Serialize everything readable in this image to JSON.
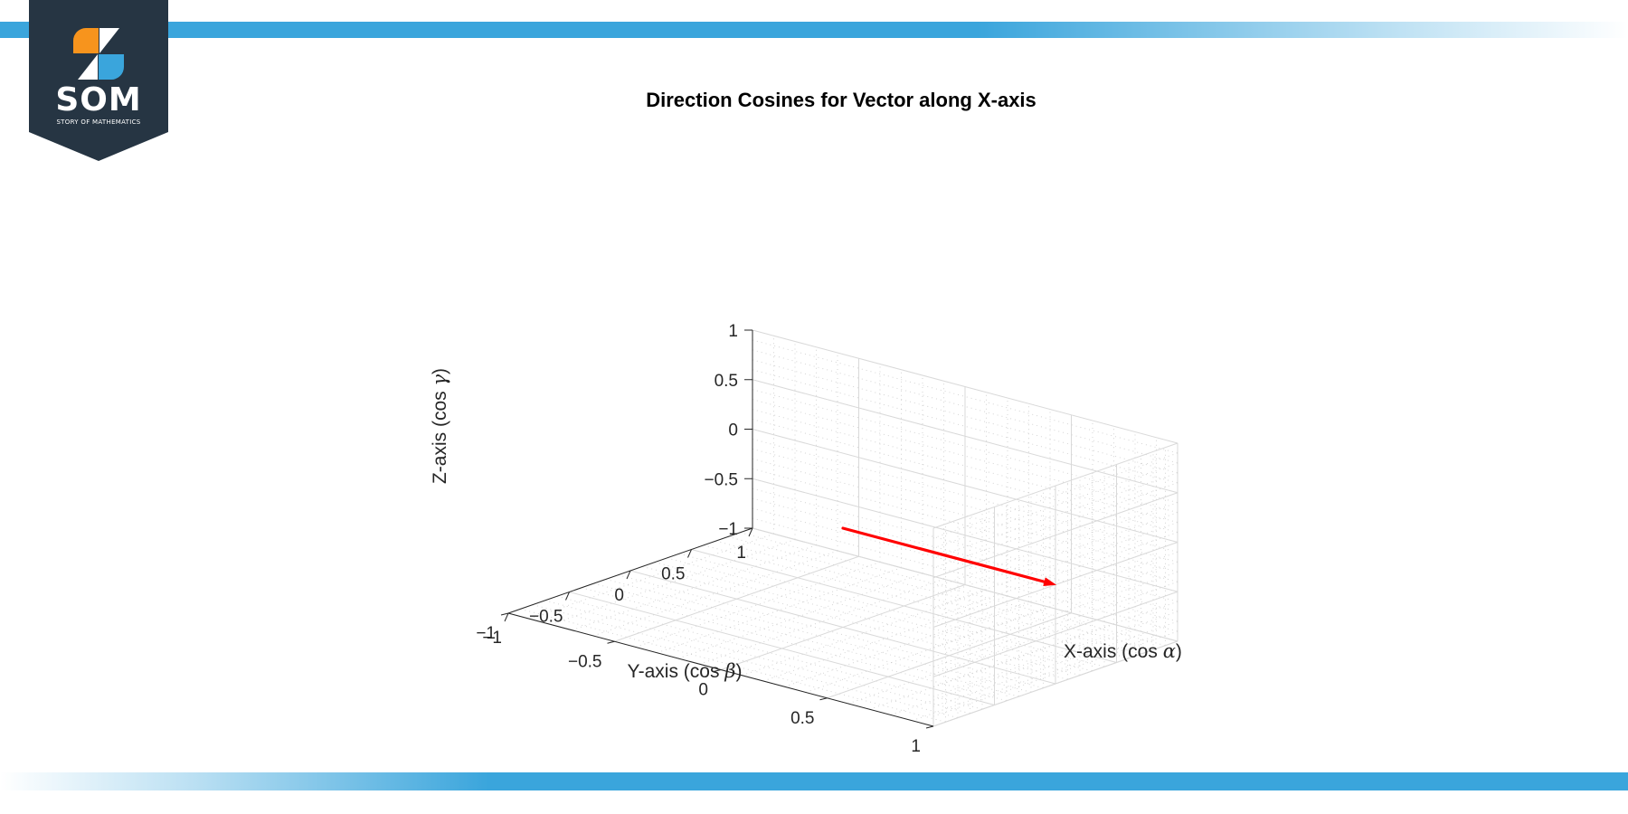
{
  "logo": {
    "text": "SOM",
    "subtext": "STORY OF MATHEMATICS",
    "bg_color": "#263543",
    "accent_orange": "#f7941d",
    "accent_blue": "#3aa5dc"
  },
  "colors": {
    "band": "#3aa5dc",
    "vector": "#ff0000",
    "grid": "#d9d9d9"
  },
  "chart_data": {
    "type": "3d-quiver",
    "title": "Direction Cosines for Vector along X-axis",
    "xlabel": "X-axis (cos ",
    "xlabel_symbol": "α",
    "xlabel_suffix": ")",
    "ylabel": "Y-axis (cos ",
    "ylabel_symbol": "β",
    "ylabel_suffix": ")",
    "zlabel": "Z-axis (cos ",
    "zlabel_symbol": "γ",
    "zlabel_suffix": ")",
    "xlim": [
      -1,
      1
    ],
    "ylim": [
      -1,
      1
    ],
    "zlim": [
      -1,
      1
    ],
    "x_ticks": [
      -1,
      -0.5,
      0,
      0.5,
      1
    ],
    "y_ticks": [
      -1,
      -0.5,
      0,
      0.5,
      1
    ],
    "z_ticks": [
      -1,
      -0.5,
      0,
      0.5,
      1
    ],
    "x_tick_labels": [
      "−1",
      "−0.5",
      "0",
      "0.5",
      "1"
    ],
    "y_tick_labels": [
      "−1",
      "−0.5",
      "0",
      "0.5",
      "1"
    ],
    "z_tick_labels": [
      "−1",
      "−0.5",
      "0",
      "0.5",
      "1"
    ],
    "grid": true,
    "minor_grid": true,
    "vectors": [
      {
        "origin": [
          0,
          0,
          0
        ],
        "components": [
          1,
          0,
          0
        ],
        "color": "#ff0000"
      }
    ]
  }
}
